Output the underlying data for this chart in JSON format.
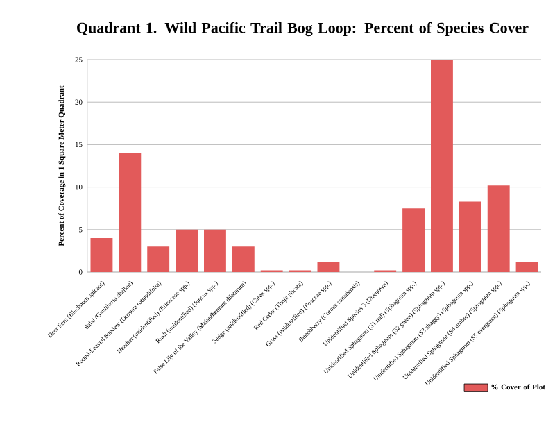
{
  "chart_data": {
    "type": "bar",
    "title": "Quadrant 1. Wild Pacific Trail Bog Loop: Percent of Species Cover",
    "ylabel": "Percent of Coverage in 1 Square Meter Quadrant",
    "categories": [
      "Deer Fern (Blechnum spicant)",
      "Salal (Gaultheria shallon)",
      "Round-Leaved Sundew (Drosera rotundifolia)",
      "Heather (unidentified) (Ericaceae spp.)",
      "Rush (unidentified) (Juncus spp.)",
      "False Lily of the Valley (Maianthemum dilatatum)",
      "Sedge (unidentified) (Carex spp.)",
      "Red Cedar (Thuja plicata)",
      "Grass (unidentified) (Poaceae spp.)",
      "Bunchberry (Cornus canadensis)",
      "Unidentified Species 3 (Unknown)",
      "Unidentified Sphagnum (S1 red) (Sphagnum spp.)",
      "Unidentified Sphagnum (S2 green) (Sphagnum spp.)",
      "Unidentified Sphagnum (S3 shaggy) (Sphagnum spp.)",
      "Unidentified Sphagnum (S4 umber) (Sphagnum spp.)",
      "Unidentified Sphagnum (S5 evergreen) (Sphagnum spp.)"
    ],
    "series": [
      {
        "name": "% Cover of Plot",
        "color": "#e25a5a",
        "values": [
          4,
          14,
          3,
          5,
          5,
          3,
          0.2,
          0.2,
          1.2,
          0,
          0.2,
          7.5,
          25,
          8.3,
          10.2,
          1.2
        ]
      }
    ],
    "ylim": [
      0,
      25
    ],
    "yticks": [
      0,
      5,
      10,
      15,
      20,
      25
    ],
    "grid": "y",
    "legend": "bottom right"
  }
}
